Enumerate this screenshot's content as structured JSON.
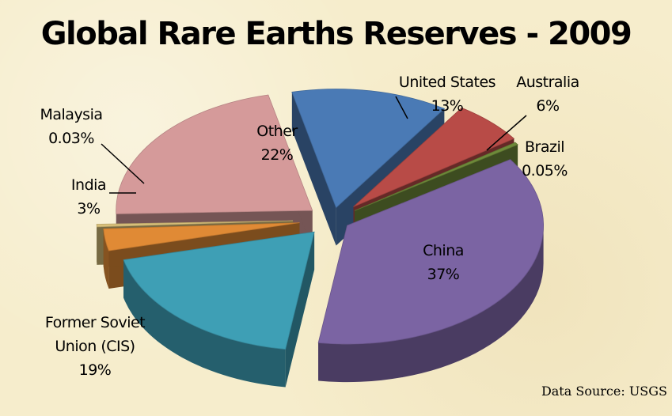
{
  "chart_data": {
    "type": "pie",
    "title": "Global Rare Earths Reserves - 2009",
    "style": "3d-exploded",
    "slices": [
      {
        "name": "United States",
        "value": 13,
        "label_lines": [
          "United States",
          "13%"
        ],
        "color": "#4a7ab5"
      },
      {
        "name": "Australia",
        "value": 6,
        "label_lines": [
          "Australia",
          "6%"
        ],
        "color": "#b84b47"
      },
      {
        "name": "Brazil",
        "value": 0.05,
        "label_lines": [
          "Brazil",
          "0.05%"
        ],
        "color": "#6e8a3a"
      },
      {
        "name": "China",
        "value": 37,
        "label_lines": [
          "China",
          "37%"
        ],
        "color": "#7b64a3"
      },
      {
        "name": "Former Soviet Union (CIS)",
        "value": 19,
        "label_lines": [
          "Former Soviet",
          "Union (CIS)",
          "19%"
        ],
        "color": "#3e9fb5"
      },
      {
        "name": "India",
        "value": 3,
        "label_lines": [
          "India",
          "3%"
        ],
        "color": "#e08a35"
      },
      {
        "name": "Malaysia",
        "value": 0.03,
        "label_lines": [
          "Malaysia",
          "0.03%"
        ],
        "color": "#d9c07a"
      },
      {
        "name": "Other",
        "value": 22,
        "label_lines": [
          "Other",
          "22%"
        ],
        "color": "#d59a9a"
      }
    ]
  },
  "source_note": "Data Source: USGS"
}
